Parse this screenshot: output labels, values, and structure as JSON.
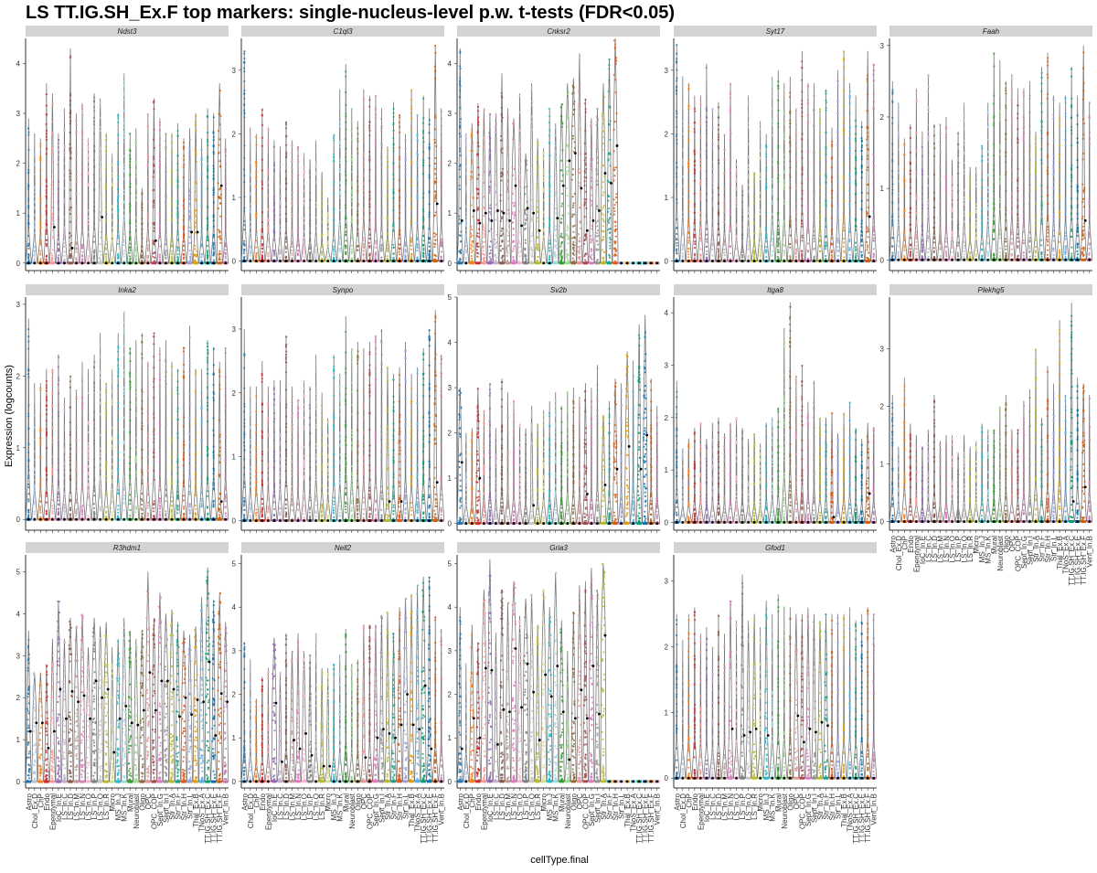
{
  "title": "LS TT.IG.SH_Ex.F top markers: single-nucleus-level p.w. t-tests (FDR<0.05)",
  "chart_data": {
    "type": "violin",
    "title": "LS TT.IG.SH_Ex.F top markers: single-nucleus-level p.w. t-tests (FDR<0.05)",
    "xlabel": "cellType.final",
    "ylabel": "Expression (logcounts)",
    "categories": [
      "Astro",
      "Chol_Ex.D",
      "ChP",
      "Endo",
      "Ependymal",
      "IoC_In.E",
      "LS_In.C",
      "LS_In.D",
      "LS_In.M",
      "LS_In.N",
      "LS_In.O",
      "LS_In.P",
      "LS_In.Q",
      "LS_In.R",
      "Micro",
      "MS_In.J",
      "MS_In.K",
      "Mural",
      "Neuroblast",
      "Oligo",
      "OPC",
      "OPC_COP",
      "Sept_In.G",
      "Sept_In.I",
      "Str_In.A",
      "Str_In.F",
      "Str_In.H",
      "Str_In.L",
      "Thal_Ex.B",
      "TNoS_Ex.A",
      "TT.IG.SH_Ex.C",
      "TT.IG.SH_Ex.E",
      "TT.IG.SH_Ex.F",
      "Vent_In.B"
    ],
    "colors": [
      "#1f77b4",
      "#aec7e8",
      "#ff7f0e",
      "#d62728",
      "#ff9896",
      "#9467bd",
      "#c5b0d5",
      "#8c564b",
      "#c49c94",
      "#e377c2",
      "#f7b6d2",
      "#7f7f7f",
      "#c7c7c7",
      "#bcbd22",
      "#dbdb8d",
      "#17becf",
      "#9edae5",
      "#2ca02c",
      "#98df8a",
      "#8c6d31",
      "#e7969c",
      "#ad494a",
      "#e377c2",
      "#969696",
      "#bcbd22",
      "#17a589",
      "#e6550d",
      "#9c9ede",
      "#e69f00",
      "#56b4e9",
      "#009e73",
      "#0072b2",
      "#d55e00",
      "#cc79a7"
    ],
    "panels": [
      {
        "gene": "Ndst3",
        "yticks": [
          0,
          1,
          2,
          3,
          4
        ],
        "ymax": 4.5,
        "medians": [
          0,
          0,
          0,
          0,
          0.72,
          0,
          0,
          0.3,
          0,
          0,
          0,
          0,
          0.92,
          0,
          0,
          0,
          0,
          0,
          0,
          0,
          0,
          0.45,
          0,
          0,
          0,
          0,
          0,
          0.62,
          0.62,
          0,
          0,
          0,
          1.55,
          0
        ],
        "maxima": [
          2.9,
          2.6,
          2.5,
          3.6,
          3.4,
          2.6,
          3.1,
          4.3,
          3.0,
          3.2,
          2.5,
          3.4,
          3.3,
          2.6,
          2.2,
          3.0,
          3.8,
          2.6,
          2.7,
          1.5,
          3.0,
          3.3,
          2.9,
          2.6,
          2.6,
          2.8,
          2.5,
          2.7,
          3.0,
          2.5,
          3.1,
          3.0,
          3.6,
          2.5
        ]
      },
      {
        "gene": "C1ql3",
        "yticks": [
          0,
          1,
          2,
          3
        ],
        "ymax": 3.5,
        "medians": [
          0,
          0,
          0,
          0,
          0,
          0,
          0,
          0,
          0,
          0,
          0,
          0,
          0,
          0,
          0,
          0,
          0,
          0,
          0,
          0,
          0,
          0,
          0,
          0,
          0,
          0,
          0,
          0,
          0,
          0,
          0,
          0,
          0.9,
          0
        ],
        "maxima": [
          3.3,
          2.1,
          2.0,
          2.4,
          2.1,
          1.9,
          1.8,
          2.2,
          1.9,
          1.8,
          1.7,
          1.6,
          1.9,
          1.4,
          1.0,
          2.0,
          2.7,
          3.1,
          2.4,
          2.2,
          2.7,
          2.6,
          2.6,
          2.4,
          1.8,
          2.5,
          2.3,
          2.0,
          2.7,
          2.3,
          2.6,
          2.4,
          3.4,
          2.4
        ]
      },
      {
        "gene": "Cnksr2",
        "yticks": [
          0,
          1,
          2,
          3,
          4
        ],
        "ymax": 4.5,
        "medians": [
          0.85,
          0,
          1.05,
          0.8,
          1.0,
          0.85,
          1.05,
          1.0,
          0.85,
          1.55,
          0.75,
          1.1,
          1.0,
          0.65,
          0,
          0,
          0.9,
          1.55,
          2.05,
          2.2,
          1.5,
          0.65,
          0.85,
          1.05,
          1.8,
          1.6,
          2.35,
          0,
          0,
          0,
          0,
          0,
          0,
          0
        ],
        "maxima": [
          4.3,
          2.6,
          2.8,
          3.2,
          3.1,
          3.0,
          3.0,
          3.8,
          3.1,
          2.9,
          3.4,
          2.2,
          3.6,
          2.5,
          2.3,
          3.1,
          2.8,
          3.2,
          3.6,
          3.7,
          4.2,
          3.3,
          2.9,
          3.1,
          3.6,
          4.1,
          4.5,
          0,
          0,
          0,
          0,
          0,
          0,
          0
        ]
      },
      {
        "gene": "Syt17",
        "yticks": [
          0,
          1,
          2,
          3
        ],
        "ymax": 3.5,
        "medians": [
          0,
          0,
          0,
          0,
          0,
          0,
          0,
          0,
          0,
          0,
          0,
          0,
          0,
          0,
          0,
          0,
          0,
          0,
          0,
          0,
          0,
          0,
          0,
          0,
          0,
          0,
          0,
          0,
          0,
          0,
          0,
          0,
          0.7,
          0
        ],
        "maxima": [
          3.4,
          2.9,
          2.8,
          2.6,
          2.6,
          3.1,
          2.4,
          2.5,
          2.0,
          2.8,
          1.6,
          1.2,
          2.6,
          1.4,
          2.2,
          2.0,
          2.9,
          3.0,
          2.8,
          2.9,
          2.4,
          3.3,
          2.8,
          2.8,
          2.4,
          2.7,
          2.1,
          3.0,
          3.3,
          2.8,
          2.6,
          2.2,
          3.3,
          3.1
        ]
      },
      {
        "gene": "Faah",
        "yticks": [
          0,
          1,
          2,
          3
        ],
        "ymax": 3.1,
        "medians": [
          0,
          0,
          0,
          0,
          0,
          0,
          0,
          0,
          0,
          0,
          0,
          0,
          0,
          0,
          0,
          0,
          0,
          0,
          0,
          0,
          0,
          0,
          0,
          0,
          0,
          0,
          0,
          0,
          0,
          0,
          0,
          0,
          0.55,
          0
        ],
        "maxima": [
          2.5,
          2.2,
          1.7,
          1.9,
          2.4,
          1.8,
          2.6,
          1.9,
          1.9,
          2.0,
          1.4,
          1.8,
          2.2,
          1.3,
          1.3,
          1.6,
          2.2,
          2.9,
          2.8,
          2.5,
          2.6,
          2.4,
          2.4,
          2.5,
          1.8,
          2.7,
          2.9,
          2.3,
          2.2,
          2.3,
          2.7,
          2.3,
          3.0,
          2.2
        ]
      },
      {
        "gene": "Inka2",
        "yticks": [
          0,
          1,
          2,
          3
        ],
        "ymax": 3.1,
        "medians": [
          0,
          0,
          0,
          0,
          0,
          0,
          0,
          0,
          0,
          0,
          0,
          0,
          0,
          0,
          0,
          0,
          0,
          0,
          0,
          0,
          0,
          0,
          0,
          0,
          0,
          0,
          0,
          0,
          0,
          0,
          0,
          0,
          0.25,
          0
        ],
        "maxima": [
          2.8,
          1.9,
          1.9,
          2.1,
          2.1,
          2.3,
          1.7,
          2.0,
          1.8,
          2.2,
          2.1,
          2.3,
          2.6,
          1.9,
          2.1,
          2.6,
          2.9,
          2.4,
          2.5,
          2.6,
          2.2,
          2.6,
          2.4,
          2.5,
          2.2,
          2.1,
          2.4,
          2.7,
          2.1,
          2.1,
          2.5,
          2.4,
          2.2,
          2.4
        ]
      },
      {
        "gene": "Synpo",
        "yticks": [
          0,
          1,
          2,
          3
        ],
        "ymax": 3.5,
        "medians": [
          0,
          0,
          0,
          0,
          0,
          0,
          0,
          0,
          0,
          0,
          0,
          0,
          0,
          0,
          0,
          0,
          0,
          0,
          0,
          0,
          0,
          0,
          0,
          0,
          0.3,
          0,
          0.3,
          0,
          0,
          0,
          0,
          0,
          0.6,
          0
        ],
        "maxima": [
          3.0,
          2.1,
          2.1,
          2.5,
          2.1,
          2.2,
          2.2,
          2.9,
          2.1,
          1.9,
          2.2,
          2.1,
          2.6,
          2.0,
          1.6,
          2.6,
          2.3,
          3.2,
          2.7,
          2.8,
          2.7,
          2.8,
          2.9,
          3.0,
          2.4,
          2.3,
          2.4,
          2.8,
          2.3,
          2.4,
          2.7,
          3.0,
          3.3,
          2.6
        ]
      },
      {
        "gene": "Sv2b",
        "yticks": [
          0,
          1,
          2,
          3,
          4,
          5
        ],
        "ymax": 5.0,
        "medians": [
          1.35,
          0,
          0,
          1.0,
          0,
          0,
          0,
          0,
          0,
          0,
          0,
          0,
          0.4,
          0,
          0,
          0,
          0,
          0,
          0,
          0,
          0,
          0.65,
          0,
          0,
          0.85,
          0,
          1.2,
          0,
          1.7,
          0,
          1.2,
          1.95,
          0,
          0
        ],
        "maxima": [
          3.0,
          2.0,
          2.1,
          3.0,
          2.5,
          3.1,
          2.1,
          3.2,
          2.9,
          2.7,
          2.2,
          2.1,
          2.6,
          2.2,
          2.5,
          2.7,
          2.9,
          2.6,
          2.9,
          3.0,
          2.8,
          3.1,
          3.0,
          3.5,
          2.4,
          2.7,
          3.2,
          3.1,
          3.8,
          3.6,
          4.4,
          4.6,
          3.2,
          2.6
        ]
      },
      {
        "gene": "Itga8",
        "yticks": [
          0,
          1,
          2,
          3,
          4
        ],
        "ymax": 4.3,
        "medians": [
          0,
          0,
          0,
          0,
          0,
          0,
          0,
          0,
          0,
          0,
          0,
          0,
          0,
          0,
          0,
          0,
          0,
          0,
          0,
          0,
          0,
          0,
          0,
          0,
          0,
          0,
          0.1,
          0,
          0,
          0,
          0,
          0,
          0.55,
          0
        ],
        "maxima": [
          2.7,
          1.4,
          1.6,
          1.8,
          1.9,
          1.6,
          1.9,
          2.0,
          1.7,
          1.9,
          2.0,
          1.8,
          1.6,
          1.7,
          1.5,
          1.9,
          2.0,
          2.2,
          3.7,
          4.2,
          2.8,
          3.0,
          2.3,
          2.7,
          2.0,
          2.0,
          2.1,
          1.7,
          2.1,
          2.3,
          1.8,
          1.6,
          1.9,
          1.8
        ]
      },
      {
        "gene": "Plekhg5",
        "yticks": [
          0,
          1,
          2,
          3
        ],
        "ymax": 3.9,
        "medians": [
          0,
          0,
          0,
          0,
          0,
          0,
          0,
          0,
          0,
          0,
          0,
          0,
          0,
          0,
          0,
          0,
          0,
          0,
          0,
          0,
          0,
          0,
          0,
          0,
          0,
          0,
          0,
          0,
          0,
          0,
          0.35,
          0,
          0.6,
          0
        ],
        "maxima": [
          2.2,
          1.3,
          2.5,
          1.7,
          1.5,
          1.3,
          1.6,
          2.2,
          1.4,
          1.5,
          1.5,
          1.2,
          1.5,
          1.3,
          1.4,
          1.7,
          1.6,
          1.6,
          2.0,
          2.2,
          1.6,
          1.6,
          2.1,
          2.3,
          3.0,
          1.8,
          2.7,
          2.4,
          3.5,
          2.2,
          3.8,
          2.5,
          2.4,
          2.2
        ]
      },
      {
        "gene": "R3hdm1",
        "yticks": [
          0,
          1,
          2,
          3,
          4,
          5
        ],
        "ymax": 5.4,
        "medians": [
          1.2,
          1.4,
          1.4,
          0.8,
          1.2,
          2.2,
          1.5,
          2.15,
          1.9,
          2.05,
          1.5,
          2.4,
          2.0,
          2.2,
          0.7,
          1.5,
          1.8,
          1.4,
          1.35,
          1.7,
          2.6,
          1.7,
          2.4,
          2.4,
          2.2,
          1.55,
          2.0,
          1.6,
          1.95,
          1.9,
          2.85,
          1.1,
          2.1,
          1.9
        ],
        "maxima": [
          3.6,
          2.6,
          2.6,
          2.8,
          3.4,
          4.3,
          3.4,
          3.9,
          3.7,
          4.0,
          3.2,
          3.9,
          3.7,
          3.8,
          3.2,
          3.4,
          3.9,
          3.6,
          3.4,
          3.6,
          5.0,
          3.9,
          4.5,
          4.0,
          4.1,
          3.8,
          3.6,
          3.5,
          3.7,
          4.4,
          5.1,
          4.3,
          4.5,
          3.8
        ]
      },
      {
        "gene": "Nell2",
        "yticks": [
          0,
          1,
          2,
          3,
          4,
          5
        ],
        "ymax": 5.2,
        "medians": [
          0,
          0,
          0,
          0,
          0,
          1.8,
          0.45,
          0,
          0.95,
          0.75,
          1.1,
          0.6,
          0,
          0.35,
          0.35,
          0,
          0,
          0,
          0,
          0,
          0.55,
          0,
          1.0,
          1.2,
          1.1,
          1.0,
          1.3,
          2.0,
          1.3,
          1.2,
          2.2,
          0.75,
          0,
          0
        ],
        "maxima": [
          3.2,
          2.8,
          1.9,
          2.4,
          2.6,
          3.3,
          2.5,
          3.4,
          3.0,
          3.4,
          3.0,
          2.9,
          3.4,
          2.6,
          2.6,
          2.7,
          2.9,
          3.5,
          2.7,
          2.8,
          3.6,
          3.6,
          3.6,
          3.8,
          3.9,
          3.4,
          4.0,
          4.2,
          4.3,
          4.5,
          4.7,
          4.7,
          3.8,
          3.5
        ]
      },
      {
        "gene": "Gria3",
        "yticks": [
          0,
          1,
          2,
          3,
          4,
          5
        ],
        "ymax": 5.2,
        "medians": [
          0.75,
          0,
          1.45,
          1.0,
          2.6,
          2.55,
          0.85,
          1.65,
          1.6,
          3.05,
          1.7,
          2.7,
          2.05,
          0.95,
          2.45,
          1.95,
          2.65,
          1.6,
          0.5,
          1.45,
          2.1,
          1.45,
          2.65,
          1.55,
          3.35,
          0,
          0,
          0,
          0,
          0,
          0,
          0,
          0,
          0
        ],
        "maxima": [
          4.0,
          2.7,
          3.6,
          3.2,
          4.4,
          5.1,
          3.4,
          4.4,
          4.1,
          4.6,
          3.8,
          4.2,
          4.3,
          3.6,
          4.4,
          4.0,
          4.8,
          3.7,
          3.0,
          3.9,
          4.5,
          4.6,
          4.9,
          4.4,
          5.0,
          0,
          0,
          0,
          0,
          0,
          0,
          0,
          0,
          0
        ]
      },
      {
        "gene": "Gfod1",
        "yticks": [
          0,
          1,
          2,
          3
        ],
        "ymax": 3.4,
        "medians": [
          0,
          0,
          0,
          0,
          0,
          0,
          0,
          0,
          0,
          0.75,
          0,
          0.65,
          0.7,
          0.75,
          0,
          0.65,
          0,
          0,
          0,
          0,
          0.95,
          0.55,
          0.75,
          0.7,
          0.85,
          0.8,
          0,
          0,
          0,
          0,
          0,
          0,
          0,
          0
        ],
        "maxima": [
          2.5,
          2.1,
          2.5,
          2.6,
          2.2,
          2.3,
          2.0,
          2.5,
          2.2,
          2.7,
          2.4,
          3.1,
          2.4,
          2.5,
          2.3,
          2.7,
          2.5,
          2.8,
          2.6,
          2.6,
          2.5,
          2.5,
          2.6,
          2.5,
          2.4,
          2.5,
          2.5,
          2.5,
          2.5,
          2.6,
          2.4,
          2.5,
          2.6,
          2.5
        ]
      }
    ]
  }
}
